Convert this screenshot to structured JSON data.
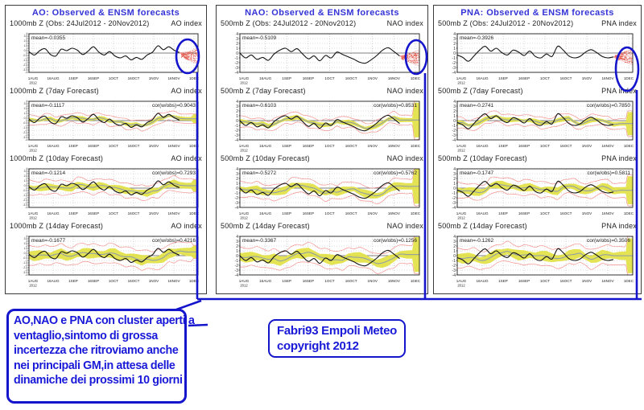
{
  "colors": {
    "title_blue": "#3434d6",
    "annotation_blue": "#1515cc",
    "band_yellow": "#e2e24b",
    "envelope_pink": "#f2928f",
    "member_red": "#e04b3c",
    "observed_black": "#141414",
    "forecast_gray": "#8d9aab"
  },
  "panels": [
    {
      "title": "AO: Observed & ENSM forecasts",
      "charts": [
        {
          "left_label": "1000mb Z (Obs: 24Jul2012 - 20Nov2012)",
          "right_label": "AO index",
          "mean_label": "mean=-0.0355",
          "cor_label": ""
        },
        {
          "left_label": "1000mb Z (7day Forecast)",
          "right_label": "AO index",
          "mean_label": "mean=-0.1117",
          "cor_label": "cor(w/obs)=0.9043"
        },
        {
          "left_label": "1000mb Z (10day Forecast)",
          "right_label": "AO index",
          "mean_label": "mean=-0.1214",
          "cor_label": "cor(w/obs)=0.7293"
        },
        {
          "left_label": "1000mb Z (14day Forecast)",
          "right_label": "AO index",
          "mean_label": "mean=-0.1677",
          "cor_label": "cor(w/obs)=0.4216"
        }
      ]
    },
    {
      "title": "NAO: Observed & ENSM forecasts",
      "charts": [
        {
          "left_label": "500mb Z (Obs: 24Jul2012 - 20Nov2012)",
          "right_label": "NAO index",
          "mean_label": "mean=-0.5109",
          "cor_label": ""
        },
        {
          "left_label": "500mb Z (7day Forecast)",
          "right_label": "NAO index",
          "mean_label": "mean=-0.6103",
          "cor_label": "cor(w/obs)=0.8531"
        },
        {
          "left_label": "500mb Z (10day Forecast)",
          "right_label": "NAO index",
          "mean_label": "mean=-0.5272",
          "cor_label": "cor(w/obs)=0.5762"
        },
        {
          "left_label": "500mb Z (14day Forecast)",
          "right_label": "NAO index",
          "mean_label": "mean=-0.3367",
          "cor_label": "cor(w/obs)=0.1256"
        }
      ]
    },
    {
      "title": "PNA: Observed & ENSM forecasts",
      "charts": [
        {
          "left_label": "500mb Z (Obs: 24Jul2012 - 20Nov2012)",
          "right_label": "PNA index",
          "mean_label": "mean=-0.3926",
          "cor_label": ""
        },
        {
          "left_label": "500mb Z (7day Forecast)",
          "right_label": "PNA index",
          "mean_label": "mean=-0.2741",
          "cor_label": "cor(w/obs)=0.7850"
        },
        {
          "left_label": "500mb Z (10day Forecast)",
          "right_label": "PNA index",
          "mean_label": "mean=-0.1747",
          "cor_label": "cor(w/obs)=0.5811"
        },
        {
          "left_label": "500mb Z (14day Forecast)",
          "right_label": "PNA index",
          "mean_label": "mean=-0.1262",
          "cor_label": "cor(w/obs)=0.3506"
        }
      ]
    }
  ],
  "chart_data": [
    {
      "type": "line",
      "title": "AO: Observed & ENSM forecasts",
      "index": "AO",
      "x_ticks": [
        "1AUG",
        "16AUG",
        "1SEP",
        "16SEP",
        "1OCT",
        "16OCT",
        "1NOV",
        "16NOV",
        "1DEC"
      ],
      "x_sub": "2012",
      "ylim": [
        -4,
        4
      ],
      "y_step": 0.5,
      "cluster_center": -0.6,
      "observed": [
        0.3,
        -0.4,
        0.5,
        0.9,
        -0.3,
        -0.6,
        0.8,
        0.5,
        1.0,
        0.6,
        -0.3,
        0.4,
        1.3,
        0.2,
        -0.4,
        0.3,
        -0.6,
        -1.0,
        -0.6,
        -1.4,
        -0.9,
        -1.3,
        -0.4,
        0.2,
        1.5,
        0.7,
        1.3,
        0.6,
        0.1
      ],
      "rows": [
        {
          "kind": "observed",
          "mean": -0.0355
        },
        {
          "kind": "7day",
          "mean": -0.1117,
          "cor_with_obs": 0.9043,
          "spread": 0.35,
          "end_flare": 0.9
        },
        {
          "kind": "10day",
          "mean": -0.1214,
          "cor_with_obs": 0.7293,
          "spread": 0.6,
          "end_flare": 1.2
        },
        {
          "kind": "14day",
          "mean": -0.1677,
          "cor_with_obs": 0.4216,
          "spread": 0.85,
          "end_flare": 1.3
        }
      ]
    },
    {
      "type": "line",
      "title": "NAO: Observed & ENSM forecasts",
      "index": "NAO",
      "x_ticks": [
        "1AUG",
        "16AUG",
        "1SEP",
        "16SEP",
        "1OCT",
        "16OCT",
        "1NOV",
        "16NOV",
        "1DEC"
      ],
      "x_sub": "2012",
      "ylim": [
        -4,
        4
      ],
      "y_step": 1,
      "cluster_center": -1.0,
      "observed": [
        0.0,
        -1.0,
        -0.4,
        -1.3,
        -0.9,
        -1.5,
        -0.2,
        0.6,
        1.0,
        0.3,
        0.9,
        -0.2,
        -1.2,
        -0.6,
        -1.6,
        -0.5,
        -1.0,
        0.2,
        -0.3,
        -0.8,
        -1.3,
        -1.9,
        -2.1,
        -1.4,
        -0.5,
        0.6,
        1.1,
        0.3,
        -0.6
      ],
      "rows": [
        {
          "kind": "observed",
          "mean": -0.5109
        },
        {
          "kind": "7day",
          "mean": -0.6103,
          "cor_with_obs": 0.8531,
          "spread": 0.4,
          "end_flare": 3.6
        },
        {
          "kind": "10day",
          "mean": -0.5272,
          "cor_with_obs": 0.5762,
          "spread": 0.65,
          "end_flare": 3.6
        },
        {
          "kind": "14day",
          "mean": -0.3367,
          "cor_with_obs": 0.1256,
          "spread": 0.85,
          "end_flare": 3.6
        }
      ]
    },
    {
      "type": "line",
      "title": "PNA: Observed & ENSM forecasts",
      "index": "PNA",
      "x_ticks": [
        "1AUG",
        "16AUG",
        "1SEP",
        "16SEP",
        "1OCT",
        "16OCT",
        "1NOV",
        "16NOV",
        "1DEC"
      ],
      "x_sub": "2012",
      "ylim": [
        -4,
        4
      ],
      "y_step": 1,
      "cluster_center": -0.8,
      "observed": [
        -0.4,
        -0.9,
        -1.7,
        -0.6,
        0.6,
        1.4,
        0.4,
        1.0,
        0.1,
        -0.4,
        0.6,
        0.2,
        -0.5,
        0.4,
        -0.7,
        -1.0,
        -0.2,
        -0.7,
        1.4,
        0.6,
        -0.6,
        -1.0,
        -0.7,
        0.2,
        0.7,
        0.1,
        -0.7,
        -1.0,
        -0.8
      ],
      "rows": [
        {
          "kind": "observed",
          "mean": -0.3926
        },
        {
          "kind": "7day",
          "mean": -0.2741,
          "cor_with_obs": 0.785,
          "spread": 0.4,
          "end_flare": 2.4
        },
        {
          "kind": "10day",
          "mean": -0.1747,
          "cor_with_obs": 0.5811,
          "spread": 0.65,
          "end_flare": 2.9
        },
        {
          "kind": "14day",
          "mean": -0.1262,
          "cor_with_obs": 0.3506,
          "spread": 0.85,
          "end_flare": 3.6
        }
      ]
    }
  ],
  "annotations": {
    "left_box": {
      "lines": [
        "AO,NAO e PNA con cluster aperti a",
        "ventaglio,sintomo di grossa",
        "incertezza che ritroviamo anche",
        "nei principali GM,in attesa delle",
        "dinamiche dei prossimi 10 giorni"
      ]
    },
    "credit_box": {
      "lines": [
        "Fabri93 Empoli Meteo",
        "copyright 2012"
      ]
    }
  }
}
